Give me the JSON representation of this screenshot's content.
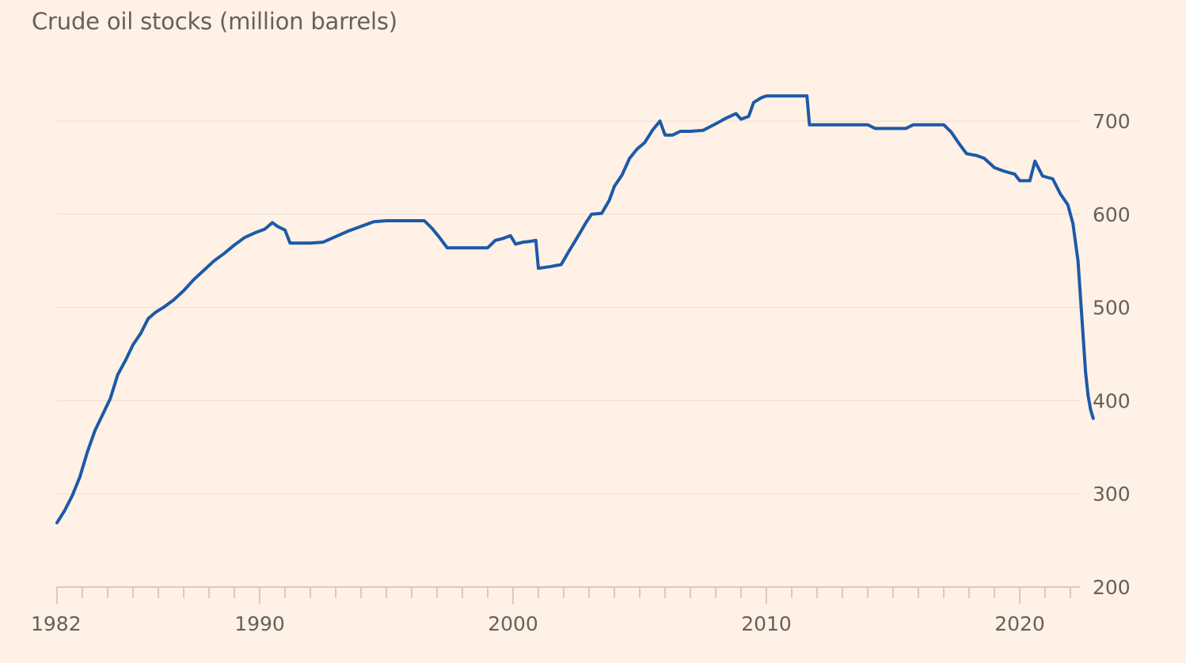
{
  "chart_data": {
    "type": "line",
    "title": "Crude oil stocks (million barrels)",
    "xlabel": "",
    "ylabel": "",
    "xlim": [
      1982,
      2022.9
    ],
    "ylim": [
      200,
      730
    ],
    "yticks": [
      200,
      300,
      400,
      500,
      600,
      700
    ],
    "xticks": [
      1982,
      1990,
      2000,
      2010,
      2020
    ],
    "grid": "horizontal",
    "y_axis_position": "right",
    "series": [
      {
        "color": "#1d59a8",
        "points": [
          [
            1982.0,
            269
          ],
          [
            1982.3,
            282
          ],
          [
            1982.6,
            298
          ],
          [
            1982.9,
            318
          ],
          [
            1983.2,
            345
          ],
          [
            1983.5,
            368
          ],
          [
            1983.8,
            385
          ],
          [
            1984.1,
            402
          ],
          [
            1984.4,
            428
          ],
          [
            1984.7,
            443
          ],
          [
            1985.0,
            460
          ],
          [
            1985.3,
            472
          ],
          [
            1985.6,
            488
          ],
          [
            1985.9,
            495
          ],
          [
            1986.2,
            500
          ],
          [
            1986.6,
            508
          ],
          [
            1987.0,
            518
          ],
          [
            1987.4,
            530
          ],
          [
            1987.8,
            540
          ],
          [
            1988.2,
            550
          ],
          [
            1988.6,
            558
          ],
          [
            1989.0,
            567
          ],
          [
            1989.4,
            575
          ],
          [
            1989.8,
            580
          ],
          [
            1990.2,
            584
          ],
          [
            1990.5,
            591
          ],
          [
            1990.7,
            587
          ],
          [
            1991.0,
            583
          ],
          [
            1991.2,
            569
          ],
          [
            1991.6,
            569
          ],
          [
            1992.0,
            569
          ],
          [
            1992.5,
            570
          ],
          [
            1993.0,
            576
          ],
          [
            1993.5,
            582
          ],
          [
            1994.0,
            587
          ],
          [
            1994.5,
            592
          ],
          [
            1995.0,
            593
          ],
          [
            1995.5,
            593
          ],
          [
            1996.0,
            593
          ],
          [
            1996.5,
            593
          ],
          [
            1996.8,
            585
          ],
          [
            1997.1,
            575
          ],
          [
            1997.4,
            564
          ],
          [
            1997.8,
            564
          ],
          [
            1998.2,
            564
          ],
          [
            1998.6,
            564
          ],
          [
            1999.0,
            564
          ],
          [
            1999.3,
            572
          ],
          [
            1999.6,
            574
          ],
          [
            1999.9,
            577
          ],
          [
            2000.1,
            568
          ],
          [
            2000.4,
            570
          ],
          [
            2000.7,
            571
          ],
          [
            2000.9,
            572
          ],
          [
            2001.0,
            542
          ],
          [
            2001.5,
            544
          ],
          [
            2001.9,
            546
          ],
          [
            2002.2,
            560
          ],
          [
            2002.6,
            578
          ],
          [
            2002.9,
            592
          ],
          [
            2003.1,
            600
          ],
          [
            2003.5,
            601
          ],
          [
            2003.8,
            615
          ],
          [
            2004.0,
            630
          ],
          [
            2004.3,
            642
          ],
          [
            2004.6,
            660
          ],
          [
            2004.9,
            670
          ],
          [
            2005.2,
            677
          ],
          [
            2005.5,
            690
          ],
          [
            2005.8,
            700
          ],
          [
            2006.0,
            685
          ],
          [
            2006.3,
            685
          ],
          [
            2006.6,
            689
          ],
          [
            2007.0,
            689
          ],
          [
            2007.5,
            690
          ],
          [
            2008.0,
            697
          ],
          [
            2008.4,
            703
          ],
          [
            2008.8,
            708
          ],
          [
            2009.0,
            702
          ],
          [
            2009.3,
            705
          ],
          [
            2009.5,
            720
          ],
          [
            2009.8,
            725
          ],
          [
            2010.0,
            727
          ],
          [
            2010.5,
            727
          ],
          [
            2011.0,
            727
          ],
          [
            2011.6,
            727
          ],
          [
            2011.7,
            696
          ],
          [
            2012.0,
            696
          ],
          [
            2012.5,
            696
          ],
          [
            2013.0,
            696
          ],
          [
            2013.5,
            696
          ],
          [
            2014.0,
            696
          ],
          [
            2014.3,
            692
          ],
          [
            2014.8,
            692
          ],
          [
            2015.5,
            692
          ],
          [
            2015.8,
            696
          ],
          [
            2016.5,
            696
          ],
          [
            2017.0,
            696
          ],
          [
            2017.3,
            688
          ],
          [
            2017.6,
            676
          ],
          [
            2017.9,
            665
          ],
          [
            2018.3,
            663
          ],
          [
            2018.6,
            660
          ],
          [
            2019.0,
            650
          ],
          [
            2019.4,
            646
          ],
          [
            2019.8,
            643
          ],
          [
            2020.0,
            636
          ],
          [
            2020.4,
            636
          ],
          [
            2020.6,
            657
          ],
          [
            2020.9,
            641
          ],
          [
            2021.3,
            638
          ],
          [
            2021.6,
            622
          ],
          [
            2021.9,
            610
          ],
          [
            2022.1,
            590
          ],
          [
            2022.3,
            550
          ],
          [
            2022.5,
            470
          ],
          [
            2022.6,
            430
          ],
          [
            2022.7,
            405
          ],
          [
            2022.8,
            390
          ],
          [
            2022.9,
            381
          ]
        ]
      }
    ]
  }
}
